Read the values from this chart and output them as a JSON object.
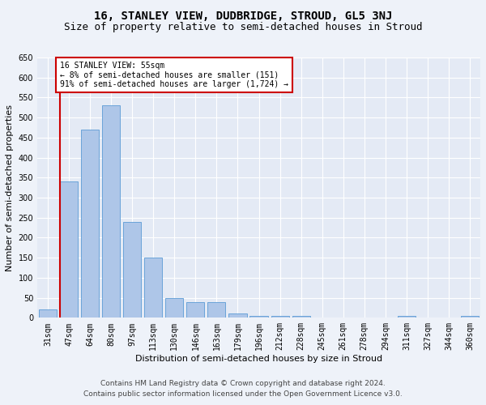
{
  "title": "16, STANLEY VIEW, DUDBRIDGE, STROUD, GL5 3NJ",
  "subtitle": "Size of property relative to semi-detached houses in Stroud",
  "xlabel": "Distribution of semi-detached houses by size in Stroud",
  "ylabel": "Number of semi-detached properties",
  "categories": [
    "31sqm",
    "47sqm",
    "64sqm",
    "80sqm",
    "97sqm",
    "113sqm",
    "130sqm",
    "146sqm",
    "163sqm",
    "179sqm",
    "196sqm",
    "212sqm",
    "228sqm",
    "245sqm",
    "261sqm",
    "278sqm",
    "294sqm",
    "311sqm",
    "327sqm",
    "344sqm",
    "360sqm"
  ],
  "values": [
    20,
    340,
    470,
    530,
    240,
    150,
    50,
    40,
    40,
    10,
    5,
    5,
    5,
    0,
    0,
    0,
    0,
    5,
    0,
    0,
    5
  ],
  "bar_color": "#aec6e8",
  "bar_edge_color": "#5b9bd5",
  "annotation_text": "16 STANLEY VIEW: 55sqm\n← 8% of semi-detached houses are smaller (151)\n91% of semi-detached houses are larger (1,724) →",
  "annotation_box_color": "#ffffff",
  "annotation_box_edge_color": "#cc0000",
  "red_line_color": "#cc0000",
  "ylim": [
    0,
    650
  ],
  "yticks": [
    0,
    50,
    100,
    150,
    200,
    250,
    300,
    350,
    400,
    450,
    500,
    550,
    600,
    650
  ],
  "footer1": "Contains HM Land Registry data © Crown copyright and database right 2024.",
  "footer2": "Contains public sector information licensed under the Open Government Licence v3.0.",
  "bg_color": "#eef2f9",
  "plot_bg_color": "#e4eaf5",
  "grid_color": "#ffffff",
  "title_fontsize": 10,
  "subtitle_fontsize": 9,
  "axis_label_fontsize": 8,
  "tick_fontsize": 7,
  "footer_fontsize": 6.5,
  "annotation_fontsize": 7
}
